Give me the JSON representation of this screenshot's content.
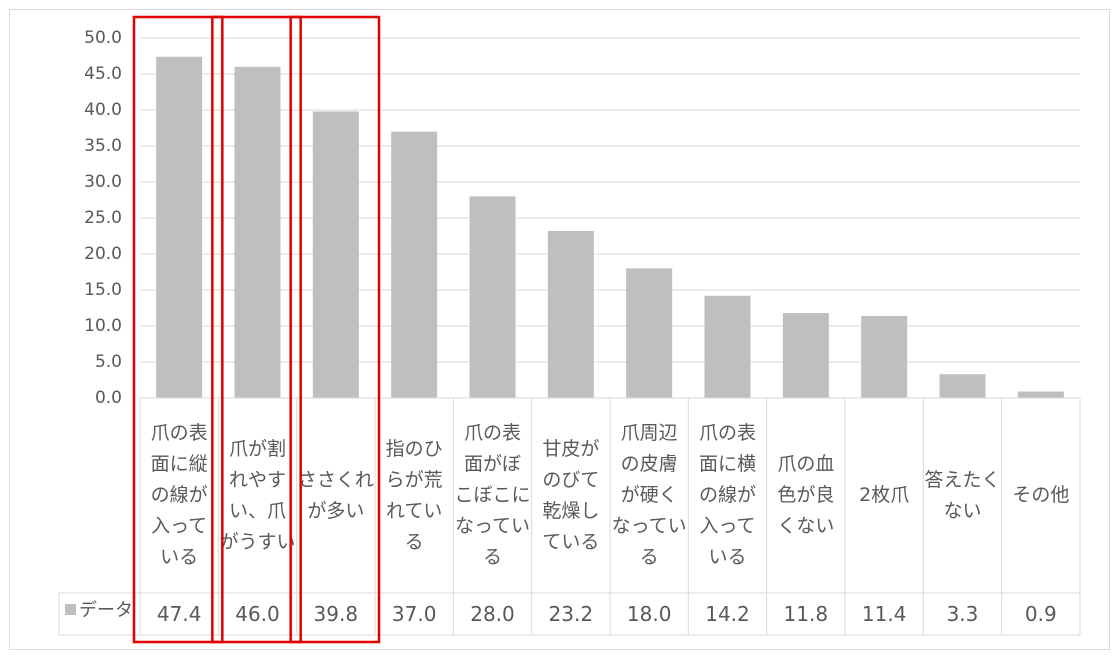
{
  "chart_data": {
    "type": "bar",
    "categories": [
      "爪の表\n面に縦\nの線が\n入って\nいる",
      "爪が割\nれやす\nい、爪\nがうすい",
      "ささくれ\nが多い",
      "指のひ\nらが荒\nれてい\nる",
      "爪の表\n面がぼ\nこぼこに\nなってい\nる",
      "甘皮が\nのびて\n乾燥し\nている",
      "爪周辺\nの皮膚\nが硬く\nなってい\nる",
      "爪の表\n面に横\nの線が\n入って\nいる",
      "爪の血\n色が良\nくない",
      "2枚爪",
      "答えたく\nない",
      "その他"
    ],
    "series": [
      {
        "name": "データ",
        "values": [
          47.4,
          46.0,
          39.8,
          37.0,
          28.0,
          23.2,
          18.0,
          14.2,
          11.8,
          11.4,
          3.3,
          0.9
        ]
      }
    ],
    "value_labels": [
      "47.4",
      "46.0",
      "39.8",
      "37.0",
      "28.0",
      "23.2",
      "18.0",
      "14.2",
      "11.8",
      "11.4",
      "3.3",
      "0.9"
    ],
    "yticks": [
      "0.0",
      "5.0",
      "10.0",
      "15.0",
      "20.0",
      "25.0",
      "30.0",
      "35.0",
      "40.0",
      "45.0",
      "50.0"
    ],
    "ylim": [
      0,
      50
    ],
    "grid": true,
    "legend": "data-table-left",
    "bar_color": "#bfbfbf",
    "gridline_color": "#d9d9d9",
    "highlight_color": "#e00000",
    "highlighted_categories": [
      0,
      1,
      2
    ]
  }
}
